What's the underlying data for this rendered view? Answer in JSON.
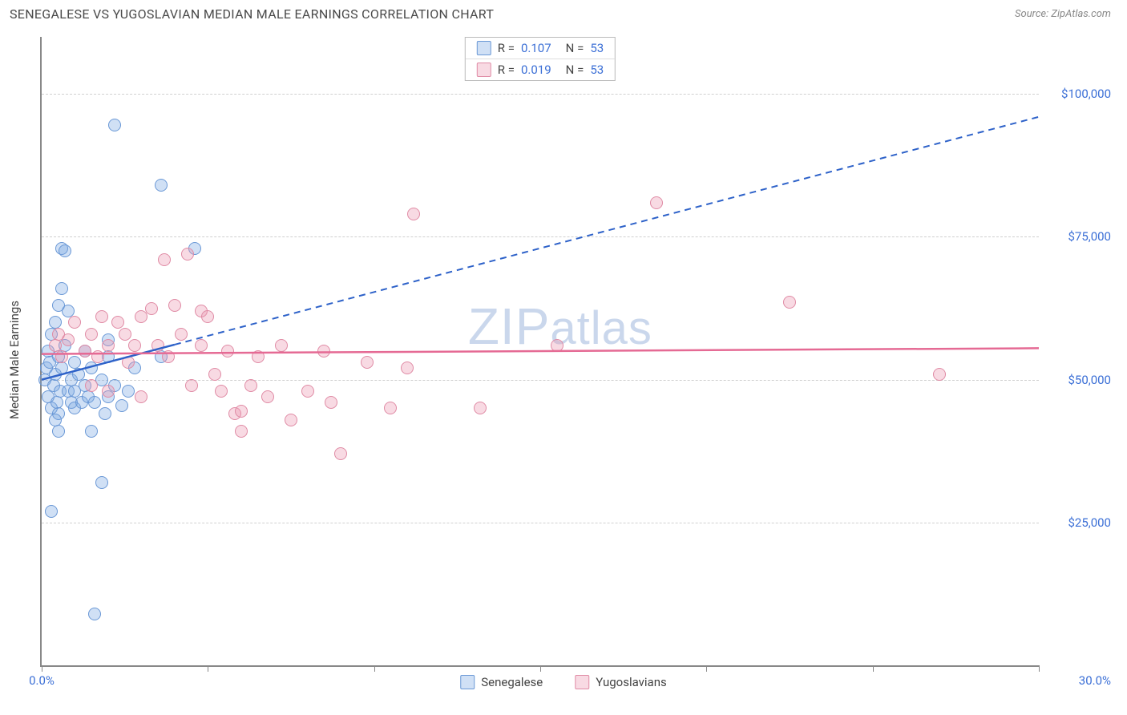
{
  "header": {
    "title": "SENEGALESE VS YUGOSLAVIAN MEDIAN MALE EARNINGS CORRELATION CHART",
    "source": "Source: ZipAtlas.com"
  },
  "chart": {
    "type": "scatter",
    "ylabel": "Median Male Earnings",
    "watermark": "ZIPatlas",
    "background_color": "#ffffff",
    "grid_color": "#d0d0d0",
    "axis_color": "#888888",
    "xlim": [
      0,
      30
    ],
    "ylim": [
      0,
      110000
    ],
    "x_ticks": [
      0,
      5,
      10,
      15,
      20,
      25,
      30
    ],
    "x_tick_labels": {
      "first": "0.0%",
      "last": "30.0%"
    },
    "y_grid": [
      25000,
      50000,
      75000,
      100000
    ],
    "y_tick_labels": [
      "$25,000",
      "$50,000",
      "$75,000",
      "$100,000"
    ],
    "marker_radius": 8,
    "marker_border_width": 1.5,
    "series": [
      {
        "name": "Senegalese",
        "fill": "rgba(120,165,225,0.35)",
        "stroke": "#6a98d6",
        "trend_color": "#2e62c9",
        "trend_solid_to_x": 4.0,
        "trend": {
          "x1": 0,
          "y1": 50000,
          "x2": 30,
          "y2": 96000
        },
        "R": "0.107",
        "N": "53",
        "points": [
          [
            0.1,
            50000
          ],
          [
            0.15,
            52000
          ],
          [
            0.2,
            47000
          ],
          [
            0.2,
            55000
          ],
          [
            0.25,
            53000
          ],
          [
            0.3,
            45000
          ],
          [
            0.3,
            58000
          ],
          [
            0.35,
            49000
          ],
          [
            0.4,
            51000
          ],
          [
            0.4,
            60000
          ],
          [
            0.45,
            46000
          ],
          [
            0.5,
            54000
          ],
          [
            0.5,
            44000
          ],
          [
            0.55,
            48000
          ],
          [
            0.6,
            52000
          ],
          [
            0.6,
            73000
          ],
          [
            0.7,
            72500
          ],
          [
            0.6,
            66000
          ],
          [
            0.8,
            62000
          ],
          [
            0.5,
            41000
          ],
          [
            0.8,
            48000
          ],
          [
            0.9,
            50000
          ],
          [
            0.9,
            46000
          ],
          [
            1.0,
            53000
          ],
          [
            1.0,
            48000
          ],
          [
            1.0,
            45000
          ],
          [
            1.1,
            51000
          ],
          [
            1.2,
            46000
          ],
          [
            1.3,
            49000
          ],
          [
            1.3,
            55000
          ],
          [
            1.4,
            47000
          ],
          [
            1.5,
            52000
          ],
          [
            1.5,
            41000
          ],
          [
            1.6,
            46000
          ],
          [
            1.8,
            50000
          ],
          [
            1.9,
            44000
          ],
          [
            2.0,
            47000
          ],
          [
            2.0,
            54000
          ],
          [
            2.2,
            49000
          ],
          [
            2.4,
            45500
          ],
          [
            2.6,
            48000
          ],
          [
            2.8,
            52000
          ],
          [
            2.2,
            94500
          ],
          [
            3.6,
            84000
          ],
          [
            1.8,
            32000
          ],
          [
            0.3,
            27000
          ],
          [
            4.6,
            73000
          ],
          [
            3.6,
            54000
          ],
          [
            2.0,
            57000
          ],
          [
            0.5,
            63000
          ],
          [
            1.6,
            9000
          ],
          [
            0.7,
            56000
          ],
          [
            0.4,
            43000
          ]
        ]
      },
      {
        "name": "Yugoslavians",
        "fill": "rgba(235,150,175,0.35)",
        "stroke": "#e08ba5",
        "trend_color": "#e56a94",
        "trend_solid_to_x": 30,
        "trend": {
          "x1": 0,
          "y1": 54500,
          "x2": 30,
          "y2": 55500
        },
        "R": "0.019",
        "N": "53",
        "points": [
          [
            0.4,
            56000
          ],
          [
            0.5,
            58000
          ],
          [
            0.6,
            54000
          ],
          [
            0.8,
            57000
          ],
          [
            1.0,
            60000
          ],
          [
            1.3,
            55000
          ],
          [
            1.5,
            58000
          ],
          [
            1.5,
            49000
          ],
          [
            1.7,
            54000
          ],
          [
            1.8,
            61000
          ],
          [
            2.0,
            56000
          ],
          [
            2.0,
            48000
          ],
          [
            2.3,
            60000
          ],
          [
            2.5,
            58000
          ],
          [
            2.6,
            53000
          ],
          [
            2.8,
            56000
          ],
          [
            3.0,
            61000
          ],
          [
            3.0,
            47000
          ],
          [
            3.3,
            62500
          ],
          [
            3.5,
            56000
          ],
          [
            3.7,
            71000
          ],
          [
            3.8,
            54000
          ],
          [
            4.0,
            63000
          ],
          [
            4.2,
            58000
          ],
          [
            4.4,
            72000
          ],
          [
            4.5,
            49000
          ],
          [
            4.8,
            56000
          ],
          [
            4.8,
            62000
          ],
          [
            5.0,
            61000
          ],
          [
            5.2,
            51000
          ],
          [
            5.4,
            48000
          ],
          [
            5.6,
            55000
          ],
          [
            5.8,
            44000
          ],
          [
            6.0,
            41000
          ],
          [
            6.3,
            49000
          ],
          [
            6.5,
            54000
          ],
          [
            6.8,
            47000
          ],
          [
            7.2,
            56000
          ],
          [
            7.5,
            43000
          ],
          [
            8.0,
            48000
          ],
          [
            8.5,
            55000
          ],
          [
            8.7,
            46000
          ],
          [
            9.0,
            37000
          ],
          [
            9.8,
            53000
          ],
          [
            10.5,
            45000
          ],
          [
            11.0,
            52000
          ],
          [
            11.2,
            79000
          ],
          [
            13.2,
            45000
          ],
          [
            18.5,
            81000
          ],
          [
            22.5,
            63500
          ],
          [
            15.5,
            56000
          ],
          [
            27.0,
            51000
          ],
          [
            6.0,
            44500
          ]
        ]
      }
    ],
    "bottom_legend": [
      "Senegalese",
      "Yugoslavians"
    ]
  }
}
